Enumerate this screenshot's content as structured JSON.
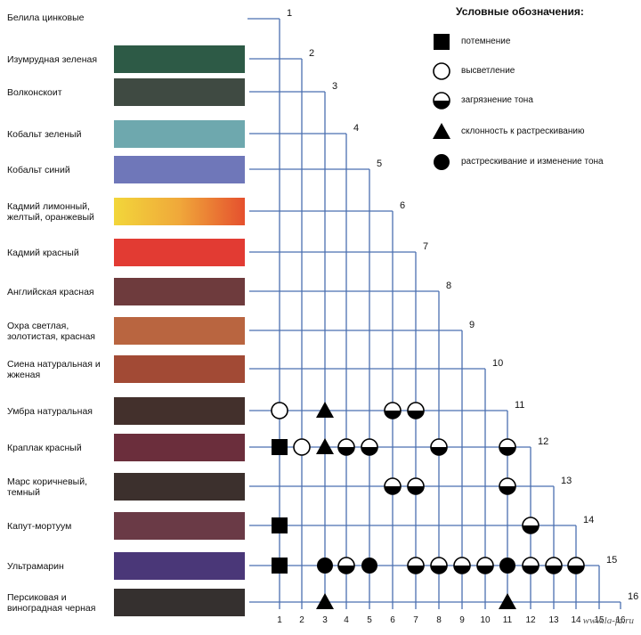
{
  "legend": {
    "title": "Условные обозначения:",
    "items": [
      {
        "symbol": "square",
        "label": "потемнение"
      },
      {
        "symbol": "circle-open",
        "label": "высветление"
      },
      {
        "symbol": "circle-half",
        "label": "загрязнение тона"
      },
      {
        "symbol": "triangle",
        "label": "склонность к растрескиванию"
      },
      {
        "symbol": "circle-filled",
        "label": "растрескивание и изменение тона"
      }
    ]
  },
  "pigments": [
    {
      "id": 1,
      "name": "Белила цинковые",
      "color": ""
    },
    {
      "id": 2,
      "name": "Изумрудная зеленая",
      "color": "#2d5a46"
    },
    {
      "id": 3,
      "name": "Волконскоит",
      "color": "#3f4a42"
    },
    {
      "id": 4,
      "name": "Кобальт зеленый",
      "color": "#6ea8ae"
    },
    {
      "id": 5,
      "name": "Кобальт синий",
      "color": "#6f77b9"
    },
    {
      "id": 6,
      "name": "Кадмий лимонный, желтый, оранжевый",
      "color": "#e88a2e",
      "gradient": [
        "#f2d63a",
        "#f0a83a",
        "#e5502e"
      ]
    },
    {
      "id": 7,
      "name": "Кадмий красный",
      "color": "#e23b33"
    },
    {
      "id": 8,
      "name": "Английская красная",
      "color": "#6e3b3d"
    },
    {
      "id": 9,
      "name": "Охра светлая, золотистая, красная",
      "color": "#b96540"
    },
    {
      "id": 10,
      "name": "Сиена натуральная и жженая",
      "color": "#a24a35"
    },
    {
      "id": 11,
      "name": "Умбра натуральная",
      "color": "#43302c"
    },
    {
      "id": 12,
      "name": "Краплак красный",
      "color": "#6b2e3c"
    },
    {
      "id": 13,
      "name": "Марс коричневый, темный",
      "color": "#3c302d"
    },
    {
      "id": 14,
      "name": "Капут-мортуум",
      "color": "#6a3a46"
    },
    {
      "id": 15,
      "name": "Ультрамарин",
      "color": "#4a3778"
    },
    {
      "id": 16,
      "name": "Персиковая и виноградная черная",
      "color": "#35302f"
    }
  ],
  "column_labels": [
    "1",
    "2",
    "3",
    "4",
    "5",
    "6",
    "7",
    "8",
    "9",
    "10",
    "11",
    "12",
    "13",
    "14",
    "15",
    "16"
  ],
  "marks": [
    {
      "row": 11,
      "col": 1,
      "symbol": "circle-open"
    },
    {
      "row": 11,
      "col": 3,
      "symbol": "triangle"
    },
    {
      "row": 11,
      "col": 6,
      "symbol": "circle-half"
    },
    {
      "row": 11,
      "col": 7,
      "symbol": "circle-half"
    },
    {
      "row": 12,
      "col": 1,
      "symbol": "square"
    },
    {
      "row": 12,
      "col": 2,
      "symbol": "circle-open"
    },
    {
      "row": 12,
      "col": 3,
      "symbol": "triangle"
    },
    {
      "row": 12,
      "col": 4,
      "symbol": "circle-half"
    },
    {
      "row": 12,
      "col": 5,
      "symbol": "circle-half"
    },
    {
      "row": 12,
      "col": 8,
      "symbol": "circle-half"
    },
    {
      "row": 12,
      "col": 11,
      "symbol": "circle-half"
    },
    {
      "row": 13,
      "col": 6,
      "symbol": "circle-half"
    },
    {
      "row": 13,
      "col": 7,
      "symbol": "circle-half"
    },
    {
      "row": 13,
      "col": 11,
      "symbol": "circle-half"
    },
    {
      "row": 14,
      "col": 1,
      "symbol": "square"
    },
    {
      "row": 14,
      "col": 12,
      "symbol": "circle-half"
    },
    {
      "row": 15,
      "col": 1,
      "symbol": "square"
    },
    {
      "row": 15,
      "col": 3,
      "symbol": "circle-filled"
    },
    {
      "row": 15,
      "col": 4,
      "symbol": "circle-half"
    },
    {
      "row": 15,
      "col": 5,
      "symbol": "circle-filled"
    },
    {
      "row": 15,
      "col": 7,
      "symbol": "circle-half"
    },
    {
      "row": 15,
      "col": 8,
      "symbol": "circle-half"
    },
    {
      "row": 15,
      "col": 9,
      "symbol": "circle-half"
    },
    {
      "row": 15,
      "col": 10,
      "symbol": "circle-half"
    },
    {
      "row": 15,
      "col": 11,
      "symbol": "circle-filled"
    },
    {
      "row": 15,
      "col": 12,
      "symbol": "circle-half"
    },
    {
      "row": 15,
      "col": 13,
      "symbol": "circle-half"
    },
    {
      "row": 15,
      "col": 14,
      "symbol": "circle-half"
    },
    {
      "row": 16,
      "col": 3,
      "symbol": "triangle"
    },
    {
      "row": 16,
      "col": 11,
      "symbol": "triangle"
    }
  ],
  "watermark": "www.la-fa.ru"
}
